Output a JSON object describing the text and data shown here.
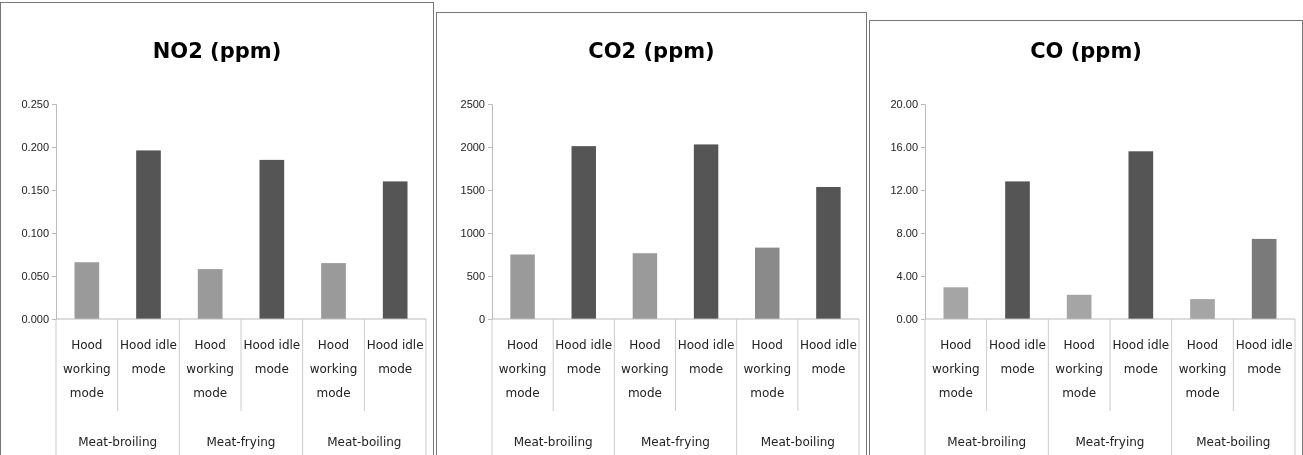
{
  "chart_data": [
    {
      "type": "bar",
      "title": "NO2 (ppm)",
      "categories": [
        "Hood working mode",
        "Hood idle mode",
        "Hood working mode",
        "Hood idle mode",
        "Hood working mode",
        "Hood idle mode"
      ],
      "values": [
        0.066,
        0.196,
        0.058,
        0.185,
        0.065,
        0.16
      ],
      "colors": [
        "#9a9a9a",
        "#555555",
        "#9a9a9a",
        "#555555",
        "#9a9a9a",
        "#555555"
      ],
      "ylim": [
        0,
        0.25
      ],
      "yticks": [
        {
          "value": 0,
          "label": "0.000"
        },
        {
          "value": 0.05,
          "label": "0.050"
        },
        {
          "value": 0.1,
          "label": "0.100"
        },
        {
          "value": 0.15,
          "label": "0.150"
        },
        {
          "value": 0.2,
          "label": "0.200"
        },
        {
          "value": 0.25,
          "label": "0.250"
        }
      ],
      "annotations": [
        "Meat-broiling",
        "Meat-frying",
        "Meat-boiling"
      ]
    },
    {
      "type": "bar",
      "title": "CO2 (ppm)",
      "categories": [
        "Hood working mode",
        "Hood idle mode",
        "Hood working mode",
        "Hood idle mode",
        "Hood working mode",
        "Hood idle mode"
      ],
      "values": [
        750,
        2010,
        765,
        2030,
        830,
        1535
      ],
      "colors": [
        "#9a9a9a",
        "#555555",
        "#9a9a9a",
        "#555555",
        "#8a8a8a",
        "#555555"
      ],
      "ylim": [
        0,
        2500
      ],
      "yticks": [
        0,
        500,
        1000,
        1500,
        2000,
        2500
      ],
      "annotations": [
        "Meat-broiling",
        "Meat-frying",
        "Meat-boiling"
      ]
    },
    {
      "type": "bar",
      "title": "CO (ppm)",
      "categories": [
        "Hood working mode",
        "Hood idle mode",
        "Hood working mode",
        "Hood idle mode",
        "Hood working mode",
        "Hood idle mode"
      ],
      "values": [
        2.95,
        12.8,
        2.25,
        15.6,
        1.85,
        7.45
      ],
      "colors": [
        "#a5a5a5",
        "#555555",
        "#a5a5a5",
        "#555555",
        "#a5a5a5",
        "#7a7a7a"
      ],
      "ylim": [
        0,
        20
      ],
      "yticks": [
        {
          "value": 0,
          "label": "0.00"
        },
        {
          "value": 4,
          "label": "4.00"
        },
        {
          "value": 8,
          "label": "8.00"
        },
        {
          "value": 12,
          "label": "12.00"
        },
        {
          "value": 16,
          "label": "16.00"
        },
        {
          "value": 20,
          "label": "20.00"
        }
      ],
      "annotations": [
        "Meat-broiling",
        "Meat-frying",
        "Meat-boiling"
      ]
    }
  ]
}
